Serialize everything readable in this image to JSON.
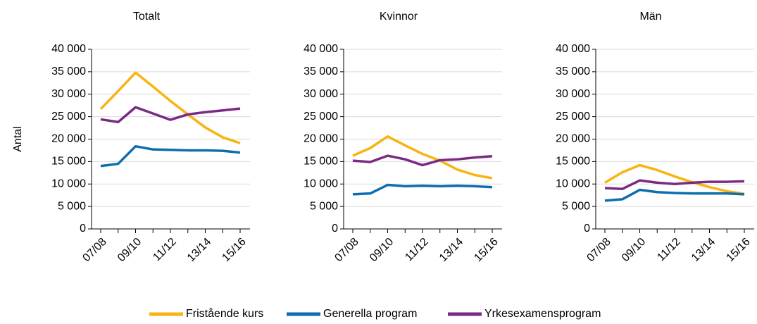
{
  "chart_data": [
    {
      "type": "line",
      "title": "Totalt",
      "y_label": "Antal",
      "categories": [
        "07/08",
        null,
        "09/10",
        null,
        "11/12",
        null,
        "13/14",
        null,
        "15/16"
      ],
      "series": [
        {
          "name": "Fristående kurs",
          "color": "#f7b412",
          "values": [
            26700,
            30700,
            34800,
            31700,
            28500,
            25500,
            22600,
            20400,
            19100
          ]
        },
        {
          "name": "Generella program",
          "color": "#0d6eaf",
          "values": [
            14000,
            14500,
            18400,
            17700,
            17600,
            17500,
            17500,
            17400,
            17000
          ]
        },
        {
          "name": "Yrkesexamensprogram",
          "color": "#7b2a83",
          "values": [
            24400,
            23800,
            27100,
            25700,
            24300,
            25500,
            26000,
            26400,
            26800
          ]
        }
      ],
      "ylim": [
        0,
        40000
      ],
      "yticks": [
        0,
        {
          "value": 5000,
          "label": "5 000"
        },
        {
          "value": 10000,
          "label": "10 000"
        },
        {
          "value": 15000,
          "label": "15 000"
        },
        {
          "value": 20000,
          "label": "20 000"
        },
        {
          "value": 25000,
          "label": "25 000"
        },
        {
          "value": 30000,
          "label": "30 000"
        },
        {
          "value": 35000,
          "label": "35 000"
        },
        {
          "value": 40000,
          "label": "40 000"
        }
      ],
      "grid": true
    },
    {
      "type": "line",
      "title": "Kvinnor",
      "categories": [
        "07/08",
        null,
        "09/10",
        null,
        "11/12",
        null,
        "13/14",
        null,
        "15/16"
      ],
      "series": [
        {
          "name": "Fristående kurs",
          "color": "#f7b412",
          "values": [
            16300,
            18000,
            20600,
            18600,
            16700,
            15200,
            13200,
            12000,
            11300
          ]
        },
        {
          "name": "Generella program",
          "color": "#0d6eaf",
          "values": [
            7700,
            7900,
            9800,
            9500,
            9600,
            9500,
            9600,
            9500,
            9300
          ]
        },
        {
          "name": "Yrkesexamensprogram",
          "color": "#7b2a83",
          "values": [
            15200,
            14900,
            16300,
            15500,
            14200,
            15300,
            15500,
            15900,
            16200
          ]
        }
      ],
      "ylim": [
        0,
        40000
      ],
      "yticks": [
        0,
        {
          "value": 5000,
          "label": "5 000"
        },
        {
          "value": 10000,
          "label": "10 000"
        },
        {
          "value": 15000,
          "label": "15 000"
        },
        {
          "value": 20000,
          "label": "20 000"
        },
        {
          "value": 25000,
          "label": "25 000"
        },
        {
          "value": 30000,
          "label": "30 000"
        },
        {
          "value": 35000,
          "label": "35 000"
        },
        {
          "value": 40000,
          "label": "40 000"
        }
      ],
      "grid": true
    },
    {
      "type": "line",
      "title": "Män",
      "categories": [
        "07/08",
        null,
        "09/10",
        null,
        "11/12",
        null,
        "13/14",
        null,
        "15/16"
      ],
      "series": [
        {
          "name": "Fristående kurs",
          "color": "#f7b412",
          "values": [
            10300,
            12600,
            14200,
            13100,
            11700,
            10400,
            9300,
            8400,
            7800
          ]
        },
        {
          "name": "Generella program",
          "color": "#0d6eaf",
          "values": [
            6300,
            6600,
            8700,
            8200,
            8000,
            7900,
            7900,
            7900,
            7700
          ]
        },
        {
          "name": "Yrkesexamensprogram",
          "color": "#7b2a83",
          "values": [
            9100,
            8900,
            10800,
            10300,
            10000,
            10300,
            10500,
            10500,
            10600
          ]
        }
      ],
      "ylim": [
        0,
        40000
      ],
      "yticks": [
        0,
        {
          "value": 5000,
          "label": "5 000"
        },
        {
          "value": 10000,
          "label": "10 000"
        },
        {
          "value": 15000,
          "label": "15 000"
        },
        {
          "value": 20000,
          "label": "20 000"
        },
        {
          "value": 25000,
          "label": "25 000"
        },
        {
          "value": 30000,
          "label": "30 000"
        },
        {
          "value": 35000,
          "label": "35 000"
        },
        {
          "value": 40000,
          "label": "40 000"
        }
      ],
      "grid": true
    }
  ]
}
